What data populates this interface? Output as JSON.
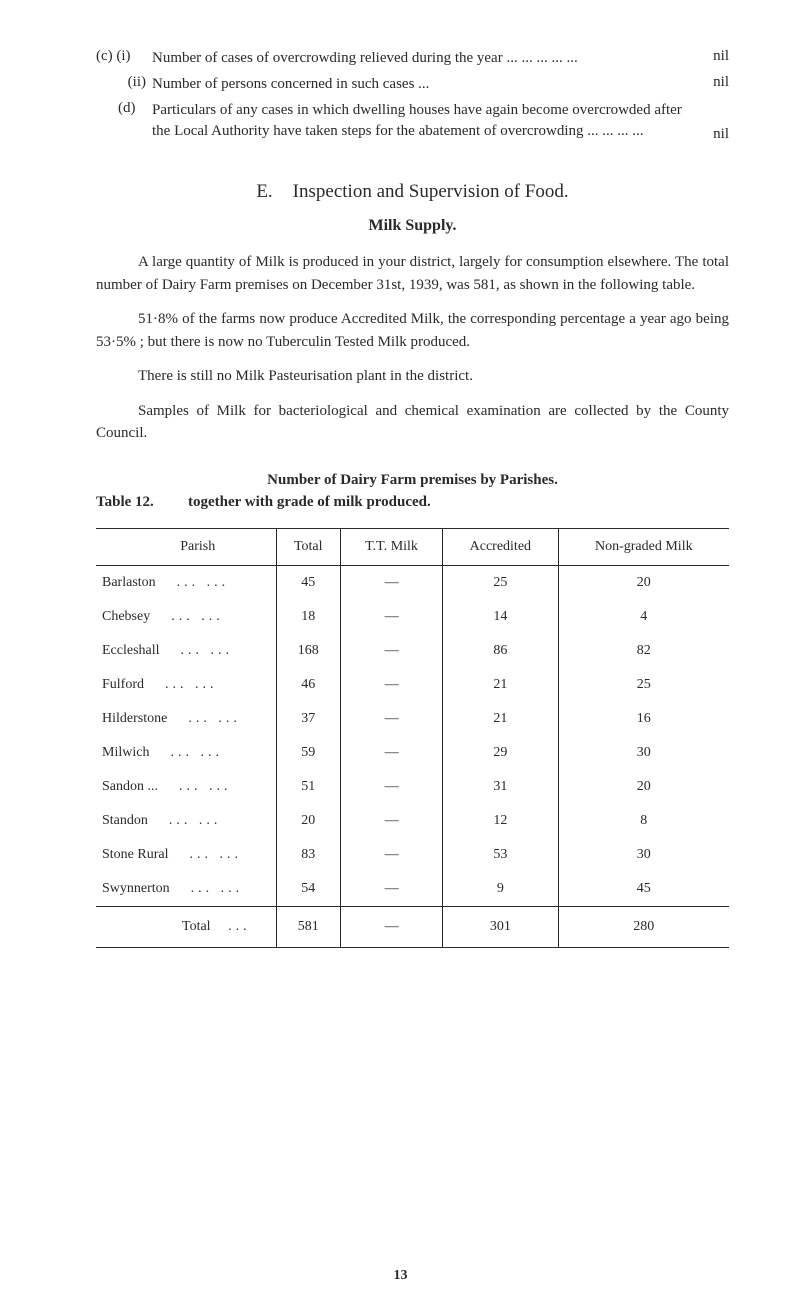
{
  "items": {
    "c_i": {
      "label": "(c) (i)",
      "text": "Number of cases of overcrowding relieved during the year   ...             ...             ...            ...           ...",
      "value": "nil"
    },
    "c_ii": {
      "label": "(ii)",
      "text": "Number of persons concerned in such cases       ...",
      "value": "nil"
    },
    "d": {
      "label": "(d)",
      "text": "Particulars of any cases in which dwelling houses have again become overcrowded after the Local Authority have taken steps for the abatement of overcrowding             ...            ...            ...           ...",
      "value": "nil"
    }
  },
  "section": {
    "letter": "E.",
    "title": "Inspection and Supervision of Food.",
    "subheading": "Milk Supply."
  },
  "paragraphs": {
    "p1": "A large quantity of Milk is produced in your district, largely for consumption elsewhere. The total number of Dairy Farm premises on December 31st, 1939, was 581, as shown in the following table.",
    "p2": "51·8% of the farms now produce Accredited Milk, the corresponding percentage a year ago being 53·5% ; but there is now no Tuberculin Tested Milk produced.",
    "p3": "There is still no Milk Pasteurisation plant in the district.",
    "p4": "Samples of Milk for bacteriological and chemical examination are collected by the County Council."
  },
  "table": {
    "caption_line1": "Number of Dairy Farm premises by Parishes.",
    "table_num": "Table 12.",
    "caption_line2": "together with grade of milk produced.",
    "columns": [
      "Parish",
      "Total",
      "T.T. Milk",
      "Accredited",
      "Non-graded Milk"
    ],
    "rows": [
      {
        "parish": "Barlaston",
        "total": "45",
        "tt": "—",
        "acc": "25",
        "non": "20"
      },
      {
        "parish": "Chebsey",
        "total": "18",
        "tt": "—",
        "acc": "14",
        "non": "4"
      },
      {
        "parish": "Eccleshall",
        "total": "168",
        "tt": "—",
        "acc": "86",
        "non": "82"
      },
      {
        "parish": "Fulford",
        "total": "46",
        "tt": "—",
        "acc": "21",
        "non": "25"
      },
      {
        "parish": "Hilderstone",
        "total": "37",
        "tt": "—",
        "acc": "21",
        "non": "16"
      },
      {
        "parish": "Milwich",
        "total": "59",
        "tt": "—",
        "acc": "29",
        "non": "30"
      },
      {
        "parish": "Sandon ...",
        "total": "51",
        "tt": "—",
        "acc": "31",
        "non": "20"
      },
      {
        "parish": "Standon",
        "total": "20",
        "tt": "—",
        "acc": "12",
        "non": "8"
      },
      {
        "parish": "Stone Rural",
        "total": "83",
        "tt": "—",
        "acc": "53",
        "non": "30"
      },
      {
        "parish": "Swynnerton",
        "total": "54",
        "tt": "—",
        "acc": "9",
        "non": "45"
      }
    ],
    "total_row": {
      "parish": "Total",
      "total": "581",
      "tt": "—",
      "acc": "301",
      "non": "280"
    },
    "ellipsis": "...        ..."
  },
  "page_number": "13"
}
